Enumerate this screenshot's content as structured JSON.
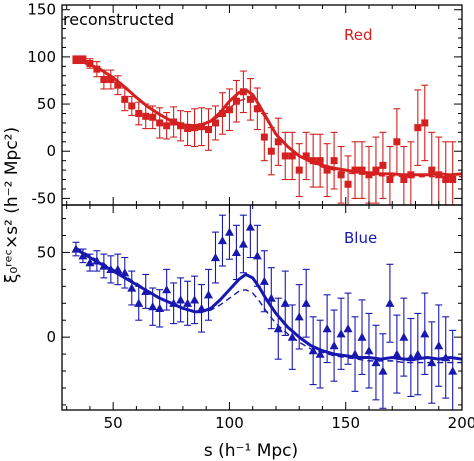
{
  "chart_data": [
    {
      "type": "scatter",
      "panel": "top",
      "annotation": "reconstructed",
      "series_label": "Red",
      "color": "#d42020",
      "marker": "square",
      "xlim": [
        28,
        200
      ],
      "ylim": [
        -57,
        155
      ],
      "xticks": [
        50,
        100,
        150,
        200
      ],
      "yticks": [
        0,
        50,
        100,
        150
      ],
      "ytick_labels": [
        "0",
        "50",
        "100",
        "150"
      ],
      "extra_ytick": -50,
      "extra_ytick_label": "-50",
      "points": [
        {
          "x": 34,
          "y": 97,
          "err": 4
        },
        {
          "x": 37,
          "y": 97,
          "err": 4
        },
        {
          "x": 40,
          "y": 93,
          "err": 5
        },
        {
          "x": 43,
          "y": 87,
          "err": 8
        },
        {
          "x": 46,
          "y": 76,
          "err": 10
        },
        {
          "x": 49,
          "y": 76,
          "err": 10
        },
        {
          "x": 52,
          "y": 70,
          "err": 10
        },
        {
          "x": 55,
          "y": 55,
          "err": 12
        },
        {
          "x": 58,
          "y": 48,
          "err": 10
        },
        {
          "x": 61,
          "y": 40,
          "err": 12
        },
        {
          "x": 64,
          "y": 37,
          "err": 13
        },
        {
          "x": 67,
          "y": 36,
          "err": 12
        },
        {
          "x": 70,
          "y": 30,
          "err": 16
        },
        {
          "x": 73,
          "y": 27,
          "err": 14
        },
        {
          "x": 76,
          "y": 31,
          "err": 16
        },
        {
          "x": 79,
          "y": 27,
          "err": 16
        },
        {
          "x": 82,
          "y": 24,
          "err": 18
        },
        {
          "x": 85,
          "y": 25,
          "err": 20
        },
        {
          "x": 88,
          "y": 26,
          "err": 20
        },
        {
          "x": 91,
          "y": 23,
          "err": 22
        },
        {
          "x": 94,
          "y": 30,
          "err": 18
        },
        {
          "x": 97,
          "y": 40,
          "err": 22
        },
        {
          "x": 100,
          "y": 44,
          "err": 22
        },
        {
          "x": 103,
          "y": 53,
          "err": 22
        },
        {
          "x": 106,
          "y": 63,
          "err": 22
        },
        {
          "x": 109,
          "y": 55,
          "err": 22
        },
        {
          "x": 112,
          "y": 45,
          "err": 22
        },
        {
          "x": 115,
          "y": 15,
          "err": 25
        },
        {
          "x": 118,
          "y": 0,
          "err": 25
        },
        {
          "x": 121,
          "y": 10,
          "err": 25
        },
        {
          "x": 124,
          "y": -5,
          "err": 25
        },
        {
          "x": 127,
          "y": -5,
          "err": 25
        },
        {
          "x": 130,
          "y": -20,
          "err": 28
        },
        {
          "x": 133,
          "y": -5,
          "err": 25
        },
        {
          "x": 136,
          "y": -10,
          "err": 28
        },
        {
          "x": 139,
          "y": -10,
          "err": 28
        },
        {
          "x": 142,
          "y": -20,
          "err": 28
        },
        {
          "x": 145,
          "y": -10,
          "err": 30
        },
        {
          "x": 148,
          "y": -25,
          "err": 30
        },
        {
          "x": 151,
          "y": -35,
          "err": 30
        },
        {
          "x": 154,
          "y": -20,
          "err": 30
        },
        {
          "x": 157,
          "y": -20,
          "err": 30
        },
        {
          "x": 160,
          "y": -25,
          "err": 30
        },
        {
          "x": 163,
          "y": -20,
          "err": 35
        },
        {
          "x": 166,
          "y": -15,
          "err": 35
        },
        {
          "x": 169,
          "y": -30,
          "err": 35
        },
        {
          "x": 172,
          "y": 10,
          "err": 35
        },
        {
          "x": 175,
          "y": -30,
          "err": 35
        },
        {
          "x": 178,
          "y": -25,
          "err": 35
        },
        {
          "x": 181,
          "y": 25,
          "err": 40
        },
        {
          "x": 184,
          "y": 30,
          "err": 40
        },
        {
          "x": 187,
          "y": -20,
          "err": 40
        },
        {
          "x": 190,
          "y": -25,
          "err": 40
        },
        {
          "x": 193,
          "y": -30,
          "err": 40
        },
        {
          "x": 196,
          "y": -30,
          "err": 40
        }
      ],
      "model_solid": {
        "x": [
          34,
          40,
          45,
          50,
          55,
          60,
          65,
          70,
          75,
          80,
          85,
          88,
          92,
          96,
          100,
          104,
          107,
          110,
          113,
          116,
          120,
          125,
          130,
          135,
          140,
          145,
          150,
          155,
          160,
          165,
          170,
          175,
          180,
          185,
          190,
          195,
          200
        ],
        "y": [
          97,
          92,
          86,
          78,
          68,
          57,
          47,
          39,
          32,
          28,
          27,
          28,
          32,
          41,
          53,
          62,
          65,
          60,
          48,
          35,
          18,
          5,
          -5,
          -11,
          -15,
          -18,
          -20,
          -22,
          -23,
          -24,
          -24,
          -25,
          -25,
          -25,
          -24,
          -25,
          -24
        ]
      },
      "model_dashed": {
        "x": [
          34,
          40,
          45,
          50,
          55,
          60,
          65,
          70,
          75,
          80,
          85,
          88,
          92,
          96,
          100,
          104,
          107,
          110,
          113,
          116,
          120,
          125,
          130,
          135,
          140,
          145,
          150,
          155,
          160,
          165,
          170,
          175,
          180,
          185,
          190,
          195,
          200
        ],
        "y": [
          96,
          91,
          85,
          77,
          67,
          57,
          47,
          38,
          32,
          28,
          27,
          28,
          31,
          38,
          46,
          53,
          56,
          54,
          44,
          33,
          19,
          6,
          -5,
          -12,
          -17,
          -20,
          -23,
          -24,
          -25,
          -26,
          -26,
          -27,
          -27,
          -27,
          -27,
          -27,
          -27
        ]
      }
    },
    {
      "type": "scatter",
      "panel": "bottom",
      "annotation": "",
      "series_label": "Blue",
      "color": "#1818b0",
      "marker": "triangle",
      "xlim": [
        28,
        200
      ],
      "ylim": [
        -43,
        78
      ],
      "xticks": [
        50,
        100,
        150,
        200
      ],
      "xtick_labels": [
        "50",
        "100",
        "150",
        "200"
      ],
      "yticks": [
        0,
        50
      ],
      "ytick_labels": [
        "0",
        "50"
      ],
      "points": [
        {
          "x": 34,
          "y": 52,
          "err": 4
        },
        {
          "x": 37,
          "y": 48,
          "err": 4
        },
        {
          "x": 40,
          "y": 44,
          "err": 5
        },
        {
          "x": 43,
          "y": 45,
          "err": 6
        },
        {
          "x": 46,
          "y": 42,
          "err": 7
        },
        {
          "x": 49,
          "y": 40,
          "err": 8
        },
        {
          "x": 52,
          "y": 40,
          "err": 9
        },
        {
          "x": 55,
          "y": 38,
          "err": 9
        },
        {
          "x": 58,
          "y": 29,
          "err": 10
        },
        {
          "x": 61,
          "y": 20,
          "err": 10
        },
        {
          "x": 64,
          "y": 27,
          "err": 10
        },
        {
          "x": 67,
          "y": 18,
          "err": 11
        },
        {
          "x": 70,
          "y": 17,
          "err": 11
        },
        {
          "x": 73,
          "y": 28,
          "err": 12
        },
        {
          "x": 76,
          "y": 20,
          "err": 12
        },
        {
          "x": 79,
          "y": 22,
          "err": 13
        },
        {
          "x": 82,
          "y": 20,
          "err": 13
        },
        {
          "x": 85,
          "y": 22,
          "err": 14
        },
        {
          "x": 88,
          "y": 17,
          "err": 14
        },
        {
          "x": 91,
          "y": 25,
          "err": 15
        },
        {
          "x": 94,
          "y": 47,
          "err": 15
        },
        {
          "x": 97,
          "y": 57,
          "err": 15
        },
        {
          "x": 100,
          "y": 62,
          "err": 16
        },
        {
          "x": 103,
          "y": 50,
          "err": 16
        },
        {
          "x": 106,
          "y": 55,
          "err": 17
        },
        {
          "x": 109,
          "y": 65,
          "err": 18
        },
        {
          "x": 112,
          "y": 48,
          "err": 18
        },
        {
          "x": 115,
          "y": 33,
          "err": 18
        },
        {
          "x": 118,
          "y": 23,
          "err": 18
        },
        {
          "x": 121,
          "y": 5,
          "err": 18
        },
        {
          "x": 124,
          "y": 20,
          "err": 19
        },
        {
          "x": 127,
          "y": 0,
          "err": 19
        },
        {
          "x": 130,
          "y": 12,
          "err": 19
        },
        {
          "x": 133,
          "y": 20,
          "err": 20
        },
        {
          "x": 136,
          "y": -8,
          "err": 20
        },
        {
          "x": 139,
          "y": -10,
          "err": 20
        },
        {
          "x": 142,
          "y": 5,
          "err": 20
        },
        {
          "x": 145,
          "y": -5,
          "err": 21
        },
        {
          "x": 148,
          "y": 2,
          "err": 21
        },
        {
          "x": 151,
          "y": 5,
          "err": 21
        },
        {
          "x": 154,
          "y": -10,
          "err": 22
        },
        {
          "x": 157,
          "y": 0,
          "err": 22
        },
        {
          "x": 160,
          "y": -8,
          "err": 22
        },
        {
          "x": 163,
          "y": -15,
          "err": 22
        },
        {
          "x": 166,
          "y": -20,
          "err": 22
        },
        {
          "x": 169,
          "y": 20,
          "err": 23
        },
        {
          "x": 172,
          "y": -10,
          "err": 23
        },
        {
          "x": 175,
          "y": 0,
          "err": 23
        },
        {
          "x": 178,
          "y": -12,
          "err": 23
        },
        {
          "x": 181,
          "y": -10,
          "err": 24
        },
        {
          "x": 184,
          "y": 2,
          "err": 24
        },
        {
          "x": 187,
          "y": -15,
          "err": 24
        },
        {
          "x": 190,
          "y": -5,
          "err": 24
        },
        {
          "x": 193,
          "y": -12,
          "err": 24
        },
        {
          "x": 196,
          "y": -20,
          "err": 24
        }
      ],
      "model_solid": {
        "x": [
          34,
          40,
          45,
          50,
          55,
          60,
          65,
          70,
          75,
          80,
          85,
          88,
          92,
          96,
          100,
          104,
          107,
          110,
          113,
          116,
          120,
          125,
          130,
          135,
          140,
          145,
          150,
          155,
          160,
          165,
          170,
          175,
          180,
          185,
          190,
          195,
          200
        ],
        "y": [
          52,
          47,
          43,
          39,
          35,
          31,
          27,
          23,
          20,
          17,
          15,
          15,
          17,
          22,
          28,
          34,
          37,
          35,
          29,
          22,
          14,
          6,
          0,
          -5,
          -8,
          -10,
          -11,
          -12,
          -12,
          -13,
          -12,
          -13,
          -13,
          -12,
          -13,
          -12,
          -13
        ]
      },
      "model_dashed": {
        "x": [
          34,
          40,
          45,
          50,
          55,
          60,
          65,
          70,
          75,
          80,
          85,
          88,
          92,
          96,
          100,
          104,
          107,
          110,
          113,
          116,
          120,
          125,
          130,
          135,
          140,
          145,
          150,
          155,
          160,
          165,
          170,
          175,
          180,
          185,
          190,
          195,
          200
        ],
        "y": [
          53,
          48,
          44,
          40,
          36,
          32,
          27,
          23,
          20,
          17,
          15,
          15,
          16,
          19,
          23,
          27,
          28,
          26,
          21,
          15,
          8,
          2,
          -3,
          -7,
          -9,
          -11,
          -12,
          -13,
          -14,
          -14,
          -14,
          -15,
          -15,
          -15,
          -15,
          -15,
          -15
        ]
      }
    }
  ],
  "axes": {
    "xlabel": "s (h⁻¹ Mpc)",
    "ylabel": "ξ₀ʳᵉᶜ×s² (h⁻² Mpc²)"
  }
}
